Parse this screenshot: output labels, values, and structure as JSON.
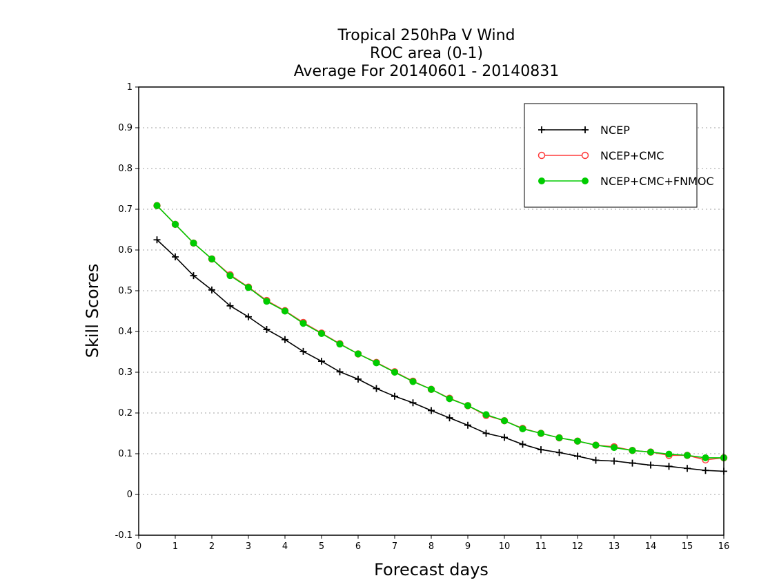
{
  "chart_data": {
    "type": "line",
    "title_lines": [
      "Tropical 250hPa V Wind",
      "ROC area (0-1)",
      "Average For 20140601 - 20140831"
    ],
    "xlabel": "Forecast days",
    "ylabel": "Skill Scores",
    "xlim": [
      0,
      16
    ],
    "ylim": [
      -0.1,
      1
    ],
    "xticks": [
      0,
      1,
      2,
      3,
      4,
      5,
      6,
      7,
      8,
      9,
      10,
      11,
      12,
      13,
      14,
      15,
      16
    ],
    "yticks": [
      -0.1,
      0,
      0.1,
      0.2,
      0.3,
      0.4,
      0.5,
      0.6,
      0.7,
      0.8,
      0.9,
      1
    ],
    "ytick_labels": [
      "-0.1",
      "0",
      "0.1",
      "0.2",
      "0.3",
      "0.4",
      "0.5",
      "0.6",
      "0.7",
      "0.8",
      "0.9",
      "1"
    ],
    "grid": true,
    "legend_position": "top-right",
    "x": [
      0.5,
      1,
      1.5,
      2,
      2.5,
      3,
      3.5,
      4,
      4.5,
      5,
      5.5,
      6,
      6.5,
      7,
      7.5,
      8,
      8.5,
      9,
      9.5,
      10,
      10.5,
      11,
      11.5,
      12,
      12.5,
      13,
      13.5,
      14,
      14.5,
      15,
      15.5,
      16
    ],
    "series": [
      {
        "name": "NCEP",
        "color": "#000000",
        "marker": "plus",
        "values": [
          0.625,
          0.583,
          0.537,
          0.502,
          0.463,
          0.436,
          0.405,
          0.38,
          0.351,
          0.327,
          0.301,
          0.283,
          0.26,
          0.241,
          0.225,
          0.206,
          0.188,
          0.17,
          0.15,
          0.14,
          0.123,
          0.11,
          0.103,
          0.094,
          0.084,
          0.082,
          0.077,
          0.072,
          0.069,
          0.064,
          0.059,
          0.057
        ]
      },
      {
        "name": "NCEP+CMC",
        "color": "#ff3b3b",
        "marker": "open-circle",
        "values": [
          0.709,
          0.663,
          0.617,
          0.578,
          0.539,
          0.509,
          0.476,
          0.451,
          0.422,
          0.396,
          0.37,
          0.345,
          0.324,
          0.301,
          0.278,
          0.258,
          0.236,
          0.218,
          0.194,
          0.181,
          0.162,
          0.15,
          0.139,
          0.131,
          0.121,
          0.117,
          0.108,
          0.104,
          0.096,
          0.096,
          0.085,
          0.09
        ]
      },
      {
        "name": "NCEP+CMC+FNMOC",
        "color": "#00cc00",
        "marker": "filled-circle",
        "values": [
          0.709,
          0.663,
          0.617,
          0.578,
          0.537,
          0.508,
          0.474,
          0.45,
          0.42,
          0.395,
          0.369,
          0.345,
          0.323,
          0.3,
          0.277,
          0.258,
          0.235,
          0.218,
          0.196,
          0.181,
          0.161,
          0.15,
          0.139,
          0.131,
          0.121,
          0.115,
          0.108,
          0.104,
          0.099,
          0.096,
          0.09,
          0.09
        ]
      }
    ]
  }
}
